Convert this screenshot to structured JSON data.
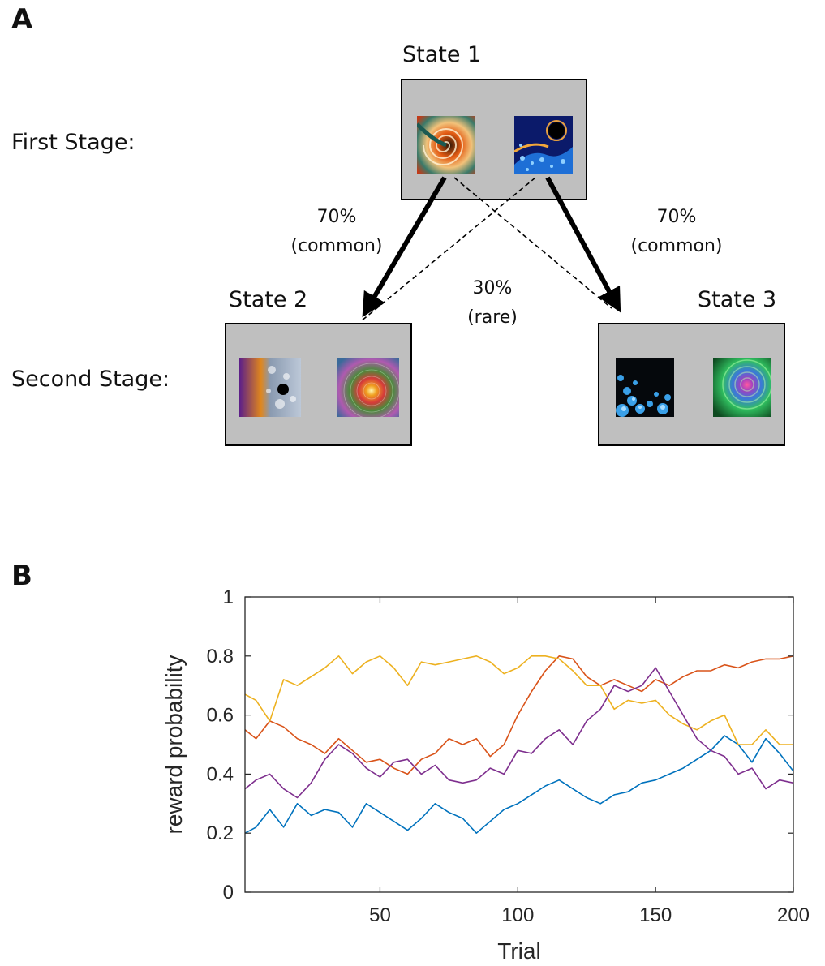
{
  "panel_a": {
    "letter": "A",
    "first_stage_label": "First Stage:",
    "second_stage_label": "Second Stage:",
    "states": [
      {
        "label": "State 1"
      },
      {
        "label": "State 2"
      },
      {
        "label": "State 3"
      }
    ],
    "transitions": {
      "common_left": {
        "percent": "70%",
        "kind": "(common)"
      },
      "common_right": {
        "percent": "70%",
        "kind": "(common)"
      },
      "rare": {
        "percent": "30%",
        "kind": "(rare)"
      }
    }
  },
  "panel_b": {
    "letter": "B"
  },
  "chart_data": {
    "type": "line",
    "xlabel": "Trial",
    "ylabel": "reward probability",
    "xlim": [
      1,
      200
    ],
    "ylim": [
      0,
      1
    ],
    "xticks": [
      50,
      100,
      150,
      200
    ],
    "yticks": [
      0,
      0.2,
      0.4,
      0.6,
      0.8,
      1
    ],
    "ytick_labels": [
      "0",
      "0.2",
      "0.4",
      "0.6",
      "0.8",
      "1"
    ],
    "grid": false,
    "series": [
      {
        "color": "#0072BD",
        "x": [
          1,
          5,
          10,
          15,
          20,
          25,
          30,
          35,
          40,
          45,
          50,
          55,
          60,
          65,
          70,
          75,
          80,
          85,
          90,
          95,
          100,
          105,
          110,
          115,
          120,
          125,
          130,
          135,
          140,
          145,
          150,
          155,
          160,
          165,
          170,
          175,
          180,
          185,
          190,
          195,
          200
        ],
        "values": [
          0.2,
          0.22,
          0.28,
          0.22,
          0.3,
          0.26,
          0.28,
          0.27,
          0.22,
          0.3,
          0.27,
          0.24,
          0.21,
          0.25,
          0.3,
          0.27,
          0.25,
          0.2,
          0.24,
          0.28,
          0.3,
          0.33,
          0.36,
          0.38,
          0.35,
          0.32,
          0.3,
          0.33,
          0.34,
          0.37,
          0.38,
          0.4,
          0.42,
          0.45,
          0.48,
          0.53,
          0.5,
          0.44,
          0.52,
          0.47,
          0.41
        ]
      },
      {
        "color": "#D95319",
        "x": [
          1,
          5,
          10,
          15,
          20,
          25,
          30,
          35,
          40,
          45,
          50,
          55,
          60,
          65,
          70,
          75,
          80,
          85,
          90,
          95,
          100,
          105,
          110,
          115,
          120,
          125,
          130,
          135,
          140,
          145,
          150,
          155,
          160,
          165,
          170,
          175,
          180,
          185,
          190,
          195,
          200
        ],
        "values": [
          0.55,
          0.52,
          0.58,
          0.56,
          0.52,
          0.5,
          0.47,
          0.52,
          0.48,
          0.44,
          0.45,
          0.42,
          0.4,
          0.45,
          0.47,
          0.52,
          0.5,
          0.52,
          0.46,
          0.5,
          0.6,
          0.68,
          0.75,
          0.8,
          0.79,
          0.73,
          0.7,
          0.72,
          0.7,
          0.68,
          0.72,
          0.7,
          0.73,
          0.75,
          0.75,
          0.77,
          0.76,
          0.78,
          0.79,
          0.79,
          0.8
        ]
      },
      {
        "color": "#EDB120",
        "x": [
          1,
          5,
          10,
          15,
          20,
          25,
          30,
          35,
          40,
          45,
          50,
          55,
          60,
          65,
          70,
          75,
          80,
          85,
          90,
          95,
          100,
          105,
          110,
          115,
          120,
          125,
          130,
          135,
          140,
          145,
          150,
          155,
          160,
          165,
          170,
          175,
          180,
          185,
          190,
          195,
          200
        ],
        "values": [
          0.67,
          0.65,
          0.58,
          0.72,
          0.7,
          0.73,
          0.76,
          0.8,
          0.74,
          0.78,
          0.8,
          0.76,
          0.7,
          0.78,
          0.77,
          0.78,
          0.79,
          0.8,
          0.78,
          0.74,
          0.76,
          0.8,
          0.8,
          0.79,
          0.75,
          0.7,
          0.7,
          0.62,
          0.65,
          0.64,
          0.65,
          0.6,
          0.57,
          0.55,
          0.58,
          0.6,
          0.5,
          0.5,
          0.55,
          0.5,
          0.5
        ]
      },
      {
        "color": "#7E2F8E",
        "x": [
          1,
          5,
          10,
          15,
          20,
          25,
          30,
          35,
          40,
          45,
          50,
          55,
          60,
          65,
          70,
          75,
          80,
          85,
          90,
          95,
          100,
          105,
          110,
          115,
          120,
          125,
          130,
          135,
          140,
          145,
          150,
          155,
          160,
          165,
          170,
          175,
          180,
          185,
          190,
          195,
          200
        ],
        "values": [
          0.35,
          0.38,
          0.4,
          0.35,
          0.32,
          0.37,
          0.45,
          0.5,
          0.47,
          0.42,
          0.39,
          0.44,
          0.45,
          0.4,
          0.43,
          0.38,
          0.37,
          0.38,
          0.42,
          0.4,
          0.48,
          0.47,
          0.52,
          0.55,
          0.5,
          0.58,
          0.62,
          0.7,
          0.68,
          0.7,
          0.76,
          0.68,
          0.6,
          0.52,
          0.48,
          0.46,
          0.4,
          0.42,
          0.35,
          0.38,
          0.37
        ]
      }
    ]
  }
}
